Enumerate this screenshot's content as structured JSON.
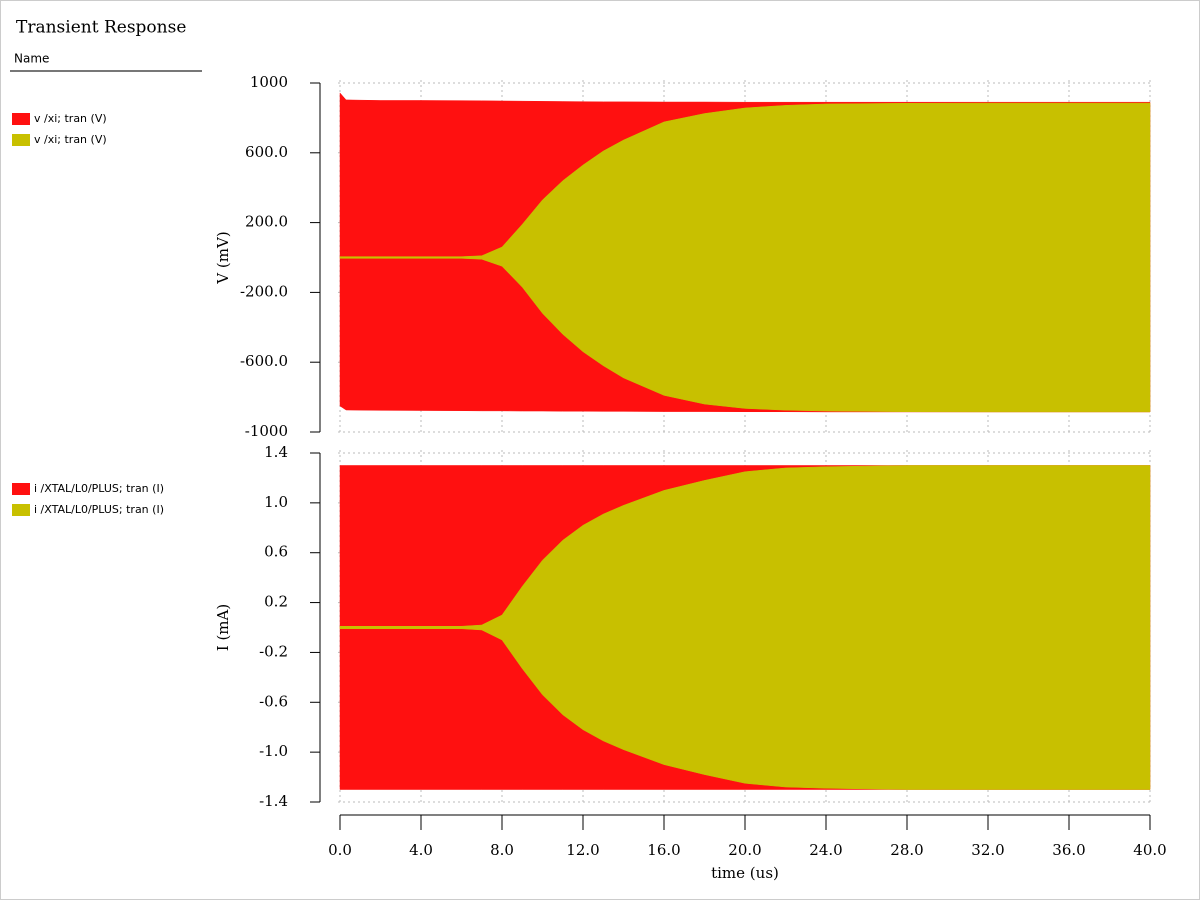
{
  "title": "Transient Response",
  "legend_header": "Name",
  "chart_data": [
    {
      "type": "envelope",
      "ylabel": "V (mV)",
      "x": [
        0,
        0.3,
        2,
        4,
        6,
        7,
        8,
        9,
        10,
        11,
        12,
        13,
        14,
        16,
        18,
        20,
        22,
        24,
        28,
        32,
        36,
        40
      ],
      "series": [
        {
          "name": "v /xi; tran (V)",
          "color": "#ff1010",
          "values": [
            943,
            903,
            900,
            900,
            899,
            898,
            897,
            896,
            895,
            894,
            893,
            892,
            892,
            891,
            891,
            890,
            890,
            890,
            890,
            890,
            890,
            890
          ],
          "lower": [
            -851,
            -874,
            -876,
            -877,
            -878,
            -879,
            -879,
            -880,
            -880,
            -881,
            -881,
            -882,
            -882,
            -883,
            -883,
            -884,
            -884,
            -885,
            -885,
            -885,
            -885,
            -885
          ]
        },
        {
          "name": "v /xi; tran (V)",
          "color": "#c8c000",
          "values": [
            5,
            5,
            5,
            5,
            5,
            10,
            60,
            190,
            330,
            440,
            530,
            610,
            673,
            777,
            825,
            857,
            872,
            880,
            884,
            885,
            885,
            885
          ],
          "lower": [
            -5,
            -5,
            -5,
            -5,
            -5,
            -10,
            -50,
            -170,
            -320,
            -440,
            -540,
            -620,
            -690,
            -790,
            -840,
            -865,
            -875,
            -880,
            -884,
            -885,
            -885,
            -885
          ]
        }
      ],
      "xlim": [
        0,
        40
      ],
      "xticks": [
        0,
        4,
        8,
        12,
        16,
        20,
        24,
        28,
        32,
        36,
        40
      ],
      "ylim": [
        -1000,
        1000
      ],
      "yticks": [
        1000,
        {
          "value": 600,
          "label": "600.0"
        },
        {
          "value": 200,
          "label": "200.0"
        },
        {
          "value": -200,
          "label": "-200.0"
        },
        {
          "value": -600,
          "label": "-600.0"
        },
        -1000
      ],
      "grid": true
    },
    {
      "type": "envelope",
      "ylabel": "I (mA)",
      "xlabel": "time (us)",
      "x": [
        0,
        0.3,
        2,
        4,
        6,
        7,
        8,
        9,
        10,
        11,
        12,
        13,
        14,
        16,
        18,
        20,
        22,
        24,
        28,
        32,
        36,
        40
      ],
      "series": [
        {
          "name": "i /XTAL/L0/PLUS; tran (I)",
          "color": "#ff1010",
          "values": [
            1.3,
            1.3,
            1.3,
            1.3,
            1.3,
            1.3,
            1.3,
            1.3,
            1.3,
            1.3,
            1.3,
            1.3,
            1.3,
            1.3,
            1.3,
            1.3,
            1.3,
            1.3,
            1.3,
            1.3,
            1.3,
            1.3
          ],
          "lower": [
            -1.3,
            -1.3,
            -1.3,
            -1.3,
            -1.3,
            -1.3,
            -1.3,
            -1.3,
            -1.3,
            -1.3,
            -1.3,
            -1.3,
            -1.3,
            -1.3,
            -1.3,
            -1.3,
            -1.3,
            -1.3,
            -1.3,
            -1.3,
            -1.3,
            -1.3
          ]
        },
        {
          "name": "i /XTAL/L0/PLUS; tran (I)",
          "color": "#c8c000",
          "values": [
            0.01,
            0.01,
            0.01,
            0.01,
            0.01,
            0.02,
            0.1,
            0.33,
            0.54,
            0.7,
            0.82,
            0.91,
            0.98,
            1.1,
            1.18,
            1.25,
            1.28,
            1.29,
            1.3,
            1.3,
            1.3,
            1.3
          ],
          "lower": [
            -0.01,
            -0.01,
            -0.01,
            -0.01,
            -0.01,
            -0.02,
            -0.1,
            -0.33,
            -0.54,
            -0.7,
            -0.82,
            -0.91,
            -0.98,
            -1.1,
            -1.18,
            -1.25,
            -1.28,
            -1.29,
            -1.3,
            -1.3,
            -1.3,
            -1.3
          ]
        }
      ],
      "xlim": [
        0,
        40
      ],
      "xticks": [
        {
          "value": 0,
          "label": "0.0"
        },
        {
          "value": 4,
          "label": "4.0"
        },
        {
          "value": 8,
          "label": "8.0"
        },
        {
          "value": 12,
          "label": "12.0"
        },
        {
          "value": 16,
          "label": "16.0"
        },
        {
          "value": 20,
          "label": "20.0"
        },
        {
          "value": 24,
          "label": "24.0"
        },
        {
          "value": 28,
          "label": "28.0"
        },
        {
          "value": 32,
          "label": "32.0"
        },
        {
          "value": 36,
          "label": "36.0"
        },
        {
          "value": 40,
          "label": "40.0"
        }
      ],
      "ylim": [
        -1.4,
        1.4
      ],
      "yticks": [
        1.4,
        {
          "value": 1,
          "label": "1.0"
        },
        0.6,
        0.2,
        -0.2,
        -0.6,
        {
          "value": -1,
          "label": "-1.0"
        },
        -1.4
      ],
      "grid": true
    }
  ]
}
